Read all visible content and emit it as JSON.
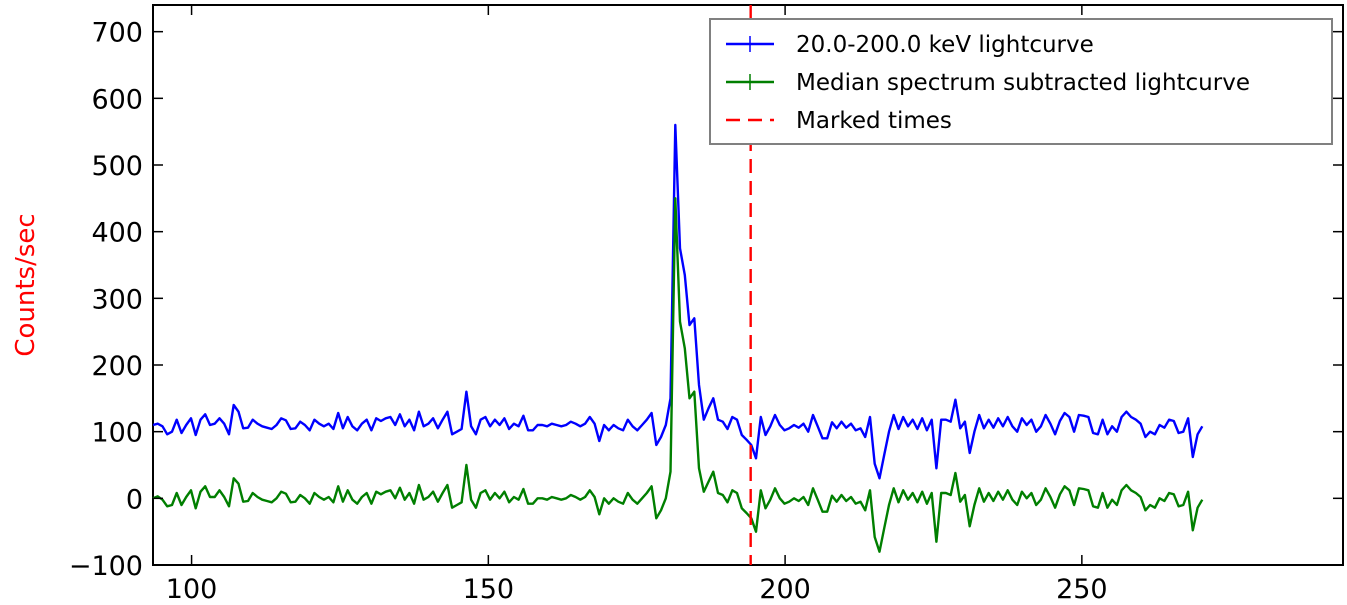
{
  "chart_data": {
    "type": "line",
    "title": "",
    "xlabel": "",
    "ylabel": "Counts/sec",
    "ylabel_color": "#ff0000",
    "xlim": [
      93.5,
      294
    ],
    "ylim": [
      -100,
      740
    ],
    "xticks": [
      100,
      150,
      200,
      250
    ],
    "yticks": [
      -100,
      0,
      100,
      200,
      300,
      400,
      500,
      600,
      700
    ],
    "ytick_labels": [
      "−100",
      "0",
      "100",
      "200",
      "300",
      "400",
      "500",
      "600",
      "700"
    ],
    "grid": false,
    "legend_position": "top-right",
    "x_start": 93.5,
    "x_step": 0.8,
    "series": [
      {
        "name": "20.0-200.0 keV lightcurve",
        "color": "#0000ff",
        "values": [
          110,
          112,
          108,
          96,
          100,
          118,
          98,
          110,
          120,
          95,
          118,
          126,
          110,
          112,
          120,
          112,
          96,
          140,
          130,
          105,
          106,
          118,
          112,
          108,
          106,
          104,
          110,
          120,
          117,
          104,
          105,
          115,
          110,
          102,
          118,
          112,
          108,
          112,
          104,
          128,
          105,
          122,
          108,
          102,
          112,
          118,
          102,
          120,
          116,
          120,
          122,
          110,
          126,
          108,
          118,
          102,
          130,
          108,
          112,
          120,
          105,
          118,
          130,
          96,
          100,
          104,
          160,
          108,
          96,
          118,
          122,
          108,
          118,
          110,
          120,
          104,
          112,
          108,
          124,
          102,
          102,
          110,
          110,
          108,
          112,
          110,
          108,
          110,
          115,
          112,
          108,
          112,
          122,
          112,
          86,
          110,
          102,
          110,
          105,
          102,
          118,
          108,
          102,
          110,
          118,
          128,
          80,
          92,
          110,
          150,
          560,
          375,
          335,
          260,
          270,
          170,
          118,
          135,
          150,
          118,
          115,
          104,
          122,
          118,
          95,
          88,
          80,
          60,
          122,
          95,
          108,
          125,
          110,
          102,
          105,
          110,
          106,
          112,
          100,
          125,
          108,
          90,
          90,
          114,
          105,
          115,
          106,
          112,
          102,
          105,
          92,
          122,
          52,
          30,
          65,
          100,
          125,
          104,
          122,
          108,
          118,
          104,
          120,
          102,
          118,
          45,
          118,
          118,
          115,
          148,
          105,
          115,
          68,
          100,
          125,
          105,
          118,
          106,
          120,
          108,
          122,
          108,
          100,
          120,
          110,
          118,
          100,
          108,
          125,
          112,
          96,
          116,
          128,
          122,
          100,
          125,
          124,
          122,
          98,
          96,
          118,
          96,
          108,
          100,
          122,
          130,
          122,
          118,
          112,
          92,
          100,
          96,
          110,
          106,
          118,
          116,
          98,
          100,
          120,
          62,
          96,
          108
        ]
      },
      {
        "name": "Median spectrum subtracted lightcurve",
        "color": "#007f00",
        "values": [
          0,
          3,
          -2,
          -12,
          -10,
          8,
          -10,
          2,
          12,
          -15,
          10,
          18,
          2,
          2,
          12,
          2,
          -12,
          30,
          22,
          -5,
          -4,
          8,
          2,
          -2,
          -4,
          -6,
          0,
          10,
          7,
          -6,
          -5,
          5,
          0,
          -8,
          8,
          2,
          -2,
          2,
          -6,
          18,
          -5,
          12,
          -2,
          -8,
          2,
          8,
          -8,
          10,
          6,
          10,
          12,
          0,
          16,
          -2,
          8,
          -8,
          20,
          -2,
          2,
          10,
          -5,
          8,
          20,
          -14,
          -10,
          -6,
          50,
          -2,
          -14,
          8,
          12,
          -2,
          8,
          0,
          10,
          -6,
          2,
          -2,
          14,
          -8,
          -8,
          0,
          0,
          -2,
          2,
          0,
          -2,
          0,
          5,
          2,
          -2,
          2,
          12,
          2,
          -24,
          0,
          -8,
          0,
          -5,
          -8,
          8,
          -2,
          -8,
          0,
          8,
          18,
          -30,
          -18,
          0,
          40,
          450,
          265,
          225,
          150,
          160,
          45,
          10,
          25,
          40,
          8,
          5,
          -6,
          12,
          8,
          -15,
          -22,
          -30,
          -50,
          12,
          -15,
          -2,
          15,
          0,
          -8,
          -5,
          0,
          -4,
          2,
          -10,
          15,
          -2,
          -20,
          -20,
          4,
          -5,
          5,
          -4,
          2,
          -8,
          -5,
          -18,
          12,
          -58,
          -80,
          -45,
          -10,
          15,
          -6,
          12,
          -2,
          8,
          -6,
          10,
          -8,
          8,
          -65,
          8,
          8,
          5,
          38,
          -5,
          5,
          -42,
          -10,
          15,
          -5,
          8,
          -4,
          10,
          -2,
          12,
          -2,
          -10,
          10,
          0,
          8,
          -10,
          -2,
          15,
          2,
          -14,
          6,
          18,
          12,
          -10,
          15,
          14,
          12,
          -12,
          -14,
          8,
          -14,
          -2,
          -10,
          12,
          20,
          12,
          8,
          2,
          -18,
          -10,
          -14,
          0,
          -4,
          8,
          6,
          -12,
          -10,
          10,
          -48,
          -14,
          -2
        ]
      }
    ],
    "legend": [
      {
        "label": "20.0-200.0 keV lightcurve",
        "color": "#0000ff",
        "style": "solid"
      },
      {
        "label": "Median spectrum subtracted lightcurve",
        "color": "#007f00",
        "style": "solid"
      },
      {
        "label": "Marked times",
        "color": "#ff0000",
        "style": "dashed"
      }
    ],
    "marked_times": [
      194.2
    ]
  }
}
